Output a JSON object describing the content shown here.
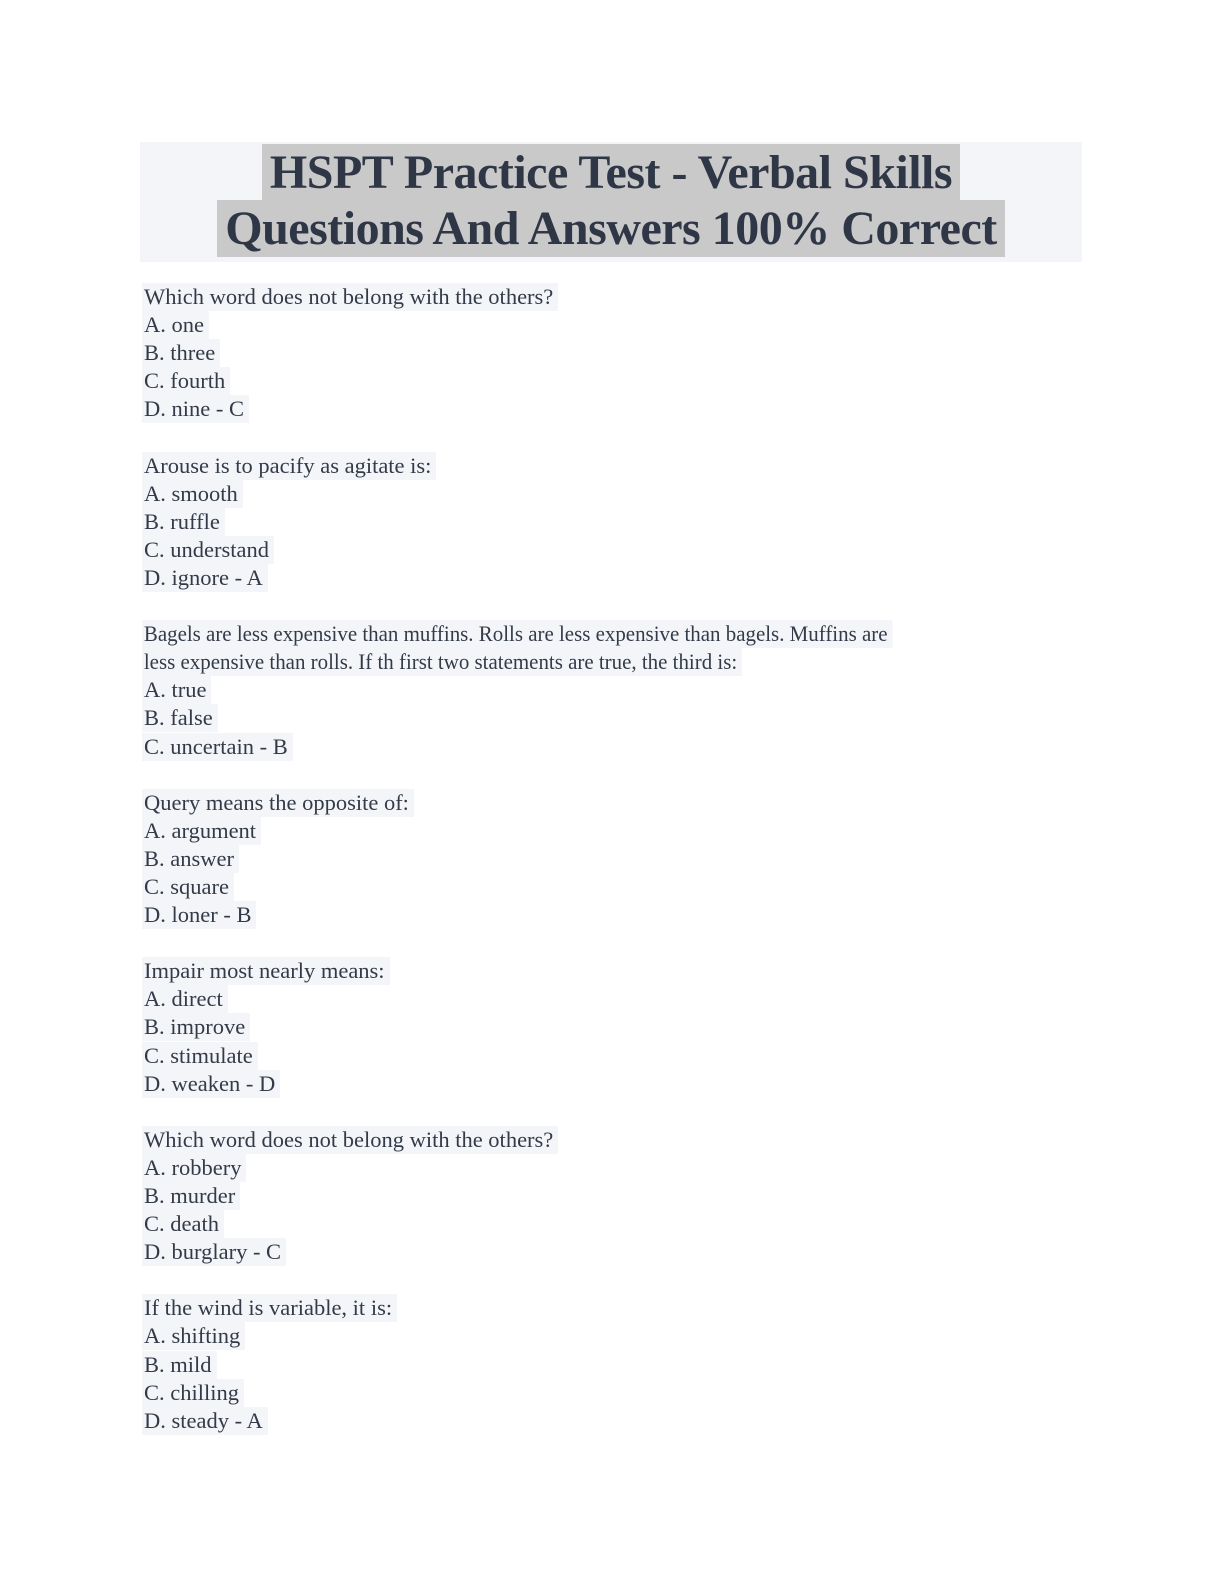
{
  "document": {
    "title_line1": "HSPT Practice Test - Verbal Skills",
    "title_line2": "Questions And Answers 100% Correct"
  },
  "questions": [
    {
      "lines": [
        "Which word does not belong with the others?",
        "A. one",
        "B. three",
        "C. fourth",
        "D. nine - C"
      ]
    },
    {
      "lines": [
        "Arouse is to pacify as agitate is:",
        "A. smooth",
        "B. ruffle",
        "C. understand",
        "D. ignore - A"
      ]
    },
    {
      "lines": [
        "Bagels are less expensive than muffins. Rolls are less expensive than bagels. Muffins are",
        "less expensive than rolls. If th first two statements are true, the third is:",
        "A. true",
        "B. false",
        "C. uncertain - B"
      ]
    },
    {
      "lines": [
        "Query means the opposite of:",
        "A. argument",
        "B. answer",
        "C. square",
        "D. loner - B"
      ]
    },
    {
      "lines": [
        "Impair most nearly means:",
        "A. direct",
        "B. improve",
        "C. stimulate",
        "D. weaken - D"
      ]
    },
    {
      "lines": [
        "Which word does not belong with the others?",
        "A. robbery",
        "B. murder",
        "C. death",
        "D. burglary - C"
      ]
    },
    {
      "lines": [
        "If the wind is variable, it is:",
        "A. shifting",
        "B. mild",
        "C. chilling",
        "D. steady - A"
      ]
    }
  ],
  "colors": {
    "title_text": "#2f3747",
    "title_highlight": "#c9c9c9",
    "title_banner_bg": "#f4f5f8",
    "body_text": "#333b48",
    "line_highlight": "#f3f5f9",
    "page_bg": "#ffffff"
  }
}
